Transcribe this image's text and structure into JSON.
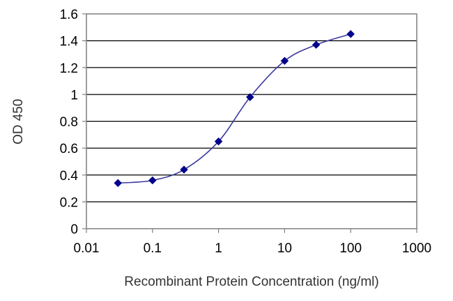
{
  "chart_data": {
    "type": "line",
    "title": "",
    "xlabel": "Recombinant Protein Concentration (ng/ml)",
    "ylabel": "OD 450",
    "x_scale": "log",
    "xlim": [
      0.01,
      1000
    ],
    "ylim": [
      0,
      1.6
    ],
    "x_ticks": [
      "0.01",
      "0.1",
      "1",
      "10",
      "100",
      "1000"
    ],
    "y_ticks": [
      "0",
      "0.2",
      "0.4",
      "0.6",
      "0.8",
      "1",
      "1.2",
      "1.4",
      "1.6"
    ],
    "grid": "horizontal",
    "legend": "none",
    "series": [
      {
        "x": [
          0.03,
          0.1,
          0.3,
          1,
          3,
          10,
          30,
          100
        ],
        "y": [
          0.34,
          0.36,
          0.44,
          0.65,
          0.98,
          1.25,
          1.37,
          1.45
        ],
        "color": "#00008b",
        "line_color": "#3a3a9e",
        "marker": "diamond",
        "smooth": true
      }
    ]
  }
}
